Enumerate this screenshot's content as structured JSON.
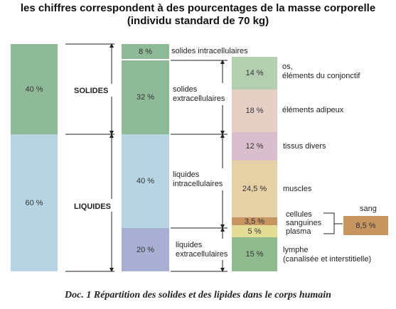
{
  "title_line1": "les chiffres correspondent à des pourcentages de la masse corporelle",
  "title_line2": "(individu standard de 70 kg)",
  "col1": {
    "solides": "40 %",
    "liquides": "60 %"
  },
  "col1_labels": {
    "solides": "SOLIDES",
    "liquides": "LIQUIDES"
  },
  "col2": {
    "solides_intra": "8 %",
    "solides_extra": "32 %",
    "liquides_intra": "40 %",
    "liquides_extra": "20 %"
  },
  "col2_labels": {
    "solides_intra": "solides intracellulaires",
    "solides_extra_1": "solides",
    "solides_extra_2": "extracellulaires",
    "liquides_intra_1": "liquides",
    "liquides_intra_2": "intracellulaires",
    "liquides_extra_1": "liquides",
    "liquides_extra_2": "extracellulaires"
  },
  "col3": {
    "os": "14 %",
    "adipeux": "18 %",
    "tissus": "12 %",
    "muscles": "24,5 %",
    "cellules": "3,5 %",
    "plasma": "5 %",
    "lymphe": "15 %"
  },
  "col3_labels": {
    "os_1": "os,",
    "os_2": "éléments du conjonctif",
    "adipeux": "éléments adipeux",
    "tissus": "tissus divers",
    "muscles": "muscles",
    "cellules_1": "cellules",
    "cellules_2": "sanguines",
    "plasma": "plasma",
    "lymphe_1": "lymphe",
    "lymphe_2": "(canalisée et interstitielle)"
  },
  "sang": {
    "label": "sang",
    "value": "8,5 %"
  },
  "caption": "Doc. 1   Répartition des solides et des lipides dans le corps humain",
  "colors": {
    "green": "#8fba97",
    "blue": "#b6d4e2",
    "lavender": "#a9afd3",
    "sage": "#b4cfb0",
    "peach": "#e6cfc4",
    "rose": "#d9bfcd",
    "tan": "#e6d1a6",
    "brown": "#c69560",
    "yellow": "#e4dd95",
    "lymph": "#8fbb8f"
  }
}
